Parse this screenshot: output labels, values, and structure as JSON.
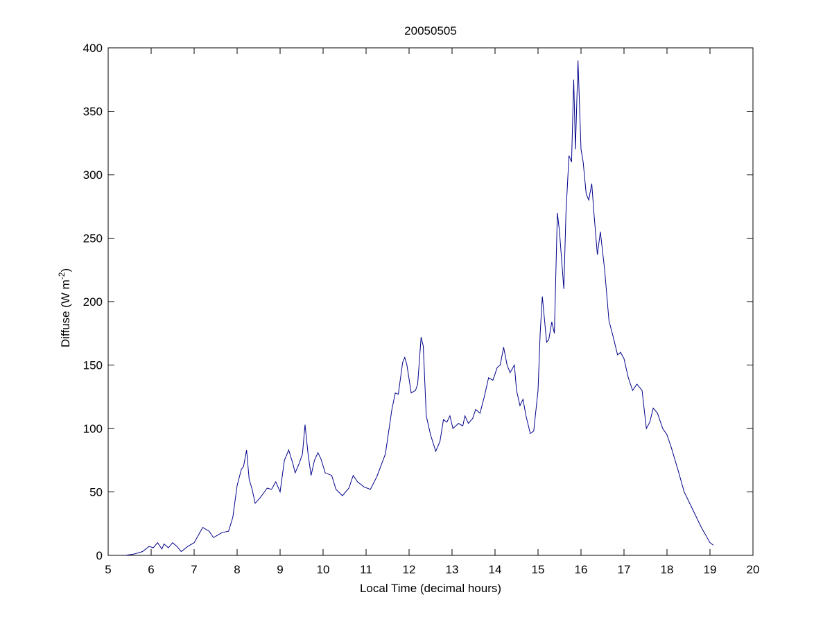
{
  "chart_data": {
    "type": "line",
    "title": "20050505",
    "xlabel": "Local Time (decimal hours)",
    "ylabel_parts": [
      "Diffuse (W m",
      "-2",
      ")"
    ],
    "xlim": [
      5,
      20
    ],
    "xticks": [
      5,
      6,
      7,
      8,
      9,
      10,
      11,
      12,
      13,
      14,
      15,
      16,
      17,
      18,
      19,
      20
    ],
    "ylim": [
      0,
      400
    ],
    "yticks": [
      0,
      50,
      100,
      150,
      200,
      250,
      300,
      350,
      400
    ],
    "grid": false,
    "series": [
      {
        "color": "#00008b",
        "x": [
          5.4,
          5.6,
          5.8,
          5.95,
          6.05,
          6.15,
          6.25,
          6.3,
          6.4,
          6.5,
          6.6,
          6.7,
          6.85,
          7.0,
          7.1,
          7.2,
          7.35,
          7.45,
          7.55,
          7.65,
          7.8,
          7.9,
          8.0,
          8.1,
          8.15,
          8.22,
          8.28,
          8.35,
          8.42,
          8.55,
          8.7,
          8.8,
          8.9,
          9.0,
          9.1,
          9.2,
          9.3,
          9.35,
          9.45,
          9.52,
          9.58,
          9.65,
          9.72,
          9.8,
          9.88,
          9.95,
          10.05,
          10.2,
          10.3,
          10.45,
          10.6,
          10.7,
          10.8,
          10.95,
          11.1,
          11.25,
          11.45,
          11.6,
          11.68,
          11.75,
          11.85,
          11.9,
          11.95,
          12.05,
          12.15,
          12.2,
          12.28,
          12.33,
          12.4,
          12.5,
          12.62,
          12.72,
          12.8,
          12.88,
          12.95,
          13.02,
          13.15,
          13.25,
          13.3,
          13.38,
          13.48,
          13.55,
          13.65,
          13.75,
          13.85,
          13.95,
          14.05,
          14.12,
          14.2,
          14.28,
          14.35,
          14.45,
          14.5,
          14.58,
          14.65,
          14.72,
          14.82,
          14.9,
          15.0,
          15.05,
          15.1,
          15.2,
          15.25,
          15.32,
          15.38,
          15.45,
          15.5,
          15.6,
          15.65,
          15.72,
          15.78,
          15.83,
          15.87,
          15.93,
          16.0,
          16.05,
          16.12,
          16.18,
          16.25,
          16.3,
          16.38,
          16.45,
          16.55,
          16.65,
          16.75,
          16.85,
          16.92,
          17.0,
          17.1,
          17.2,
          17.3,
          17.42,
          17.52,
          17.6,
          17.68,
          17.78,
          17.9,
          18.0,
          18.1,
          18.25,
          18.4,
          18.6,
          18.8,
          19.0,
          19.08
        ],
        "values": [
          0,
          1,
          3,
          7,
          6,
          10,
          5,
          9,
          6,
          10,
          7,
          3,
          7,
          10,
          16,
          22,
          19,
          14,
          16,
          18,
          19,
          30,
          55,
          68,
          70,
          83,
          60,
          52,
          41,
          46,
          53,
          52,
          58,
          50,
          75,
          83,
          72,
          65,
          73,
          80,
          103,
          80,
          63,
          75,
          81,
          76,
          65,
          63,
          52,
          47,
          53,
          63,
          58,
          54,
          52,
          62,
          80,
          115,
          128,
          127,
          152,
          156,
          150,
          128,
          130,
          135,
          172,
          165,
          110,
          95,
          82,
          90,
          107,
          105,
          110,
          100,
          104,
          102,
          110,
          104,
          108,
          115,
          112,
          125,
          140,
          138,
          148,
          150,
          164,
          150,
          144,
          150,
          130,
          118,
          123,
          110,
          96,
          98,
          130,
          175,
          204,
          168,
          170,
          184,
          175,
          270,
          255,
          210,
          270,
          315,
          310,
          375,
          320,
          390,
          320,
          310,
          285,
          280,
          293,
          270,
          237,
          255,
          225,
          185,
          172,
          158,
          160,
          155,
          140,
          130,
          135,
          130,
          100,
          105,
          116,
          112,
          100,
          95,
          85,
          68,
          50,
          36,
          22,
          10,
          8
        ]
      }
    ]
  }
}
